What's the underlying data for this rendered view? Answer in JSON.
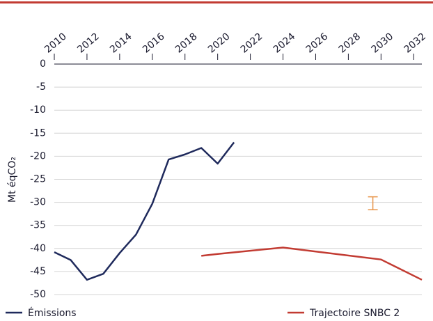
{
  "chart_data": {
    "type": "line",
    "y_label": "Mt éqCO₂",
    "xlim": [
      2010,
      2032.5
    ],
    "xticks": [
      2010,
      2012,
      2014,
      2016,
      2018,
      2020,
      2022,
      2024,
      2026,
      2028,
      2030,
      2032
    ],
    "ylim": [
      0,
      -50
    ],
    "yticks": [
      0,
      -5,
      -10,
      -15,
      -20,
      -25,
      -30,
      -35,
      -40,
      -45,
      -50
    ],
    "grid": true,
    "series": [
      {
        "name": "Émissions",
        "color": "#1f2a5c",
        "x": [
          2010,
          2011,
          2012,
          2013,
          2014,
          2015,
          2016,
          2017,
          2018,
          2019,
          2020,
          2021
        ],
        "values": [
          -40.8,
          -42.5,
          -46.8,
          -45.5,
          -41,
          -37,
          -30.3,
          -20.7,
          -19.6,
          -18.2,
          -21.6,
          -17
        ]
      },
      {
        "name": "Trajectoire SNBC 2",
        "color": "#c23b32",
        "x": [
          2019,
          2020,
          2024,
          2030,
          2032.5
        ],
        "values": [
          -41.6,
          -41.2,
          -39.8,
          -42.4,
          -46.8
        ]
      }
    ],
    "range": {
      "x": 2029.5,
      "low": -31.6,
      "high": -28.8,
      "color": "#e8954a"
    }
  }
}
